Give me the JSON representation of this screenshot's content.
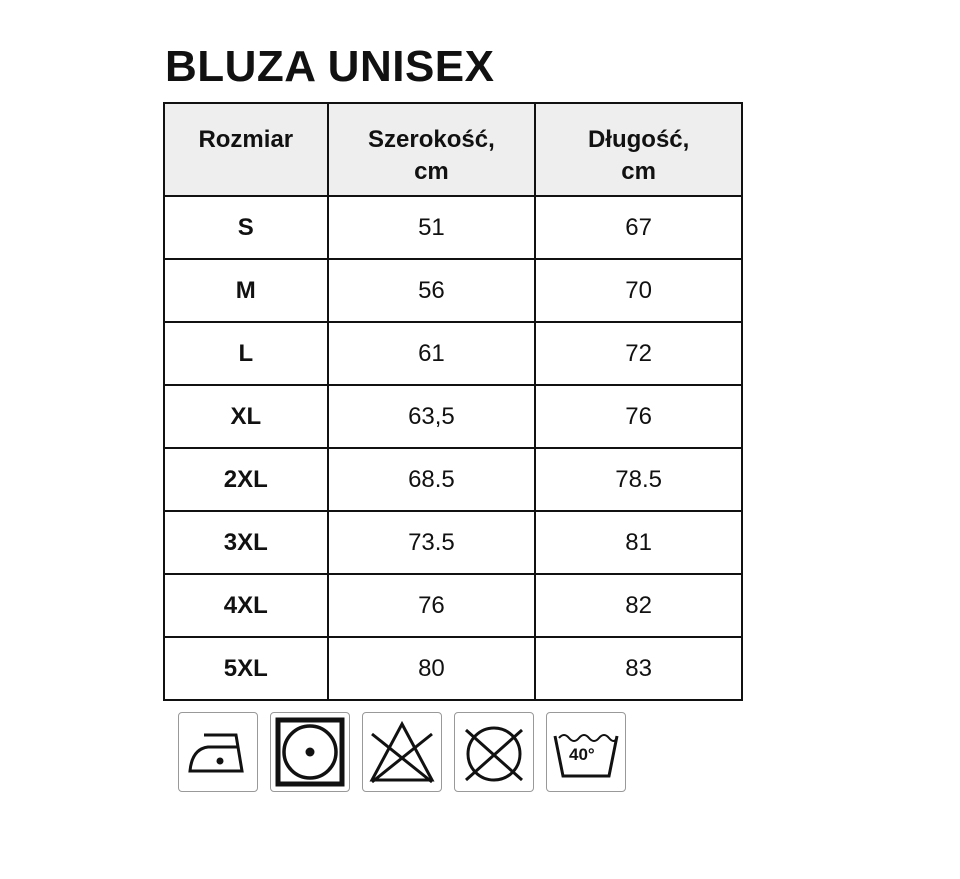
{
  "title": "BLUZA UNISEX",
  "headers": [
    "Rozmiar",
    "Szerokość,\ncm",
    "Długość,\ncm"
  ],
  "rows": [
    [
      "S",
      "51",
      "67"
    ],
    [
      "M",
      "56",
      "70"
    ],
    [
      "L",
      "61",
      "72"
    ],
    [
      "XL",
      "63,5",
      "76"
    ],
    [
      "2XL",
      "68.5",
      "78.5"
    ],
    [
      "3XL",
      "73.5",
      "81"
    ],
    [
      "4XL",
      "76",
      "82"
    ],
    [
      "5XL",
      "80",
      "83"
    ]
  ],
  "care_icons": [
    {
      "icon": "iron-one-dot-icon"
    },
    {
      "icon": "tumble-dry-icon"
    },
    {
      "icon": "do-not-bleach-icon"
    },
    {
      "icon": "do-not-dry-clean-icon"
    },
    {
      "icon": "wash-40-icon",
      "label": "40°"
    }
  ]
}
